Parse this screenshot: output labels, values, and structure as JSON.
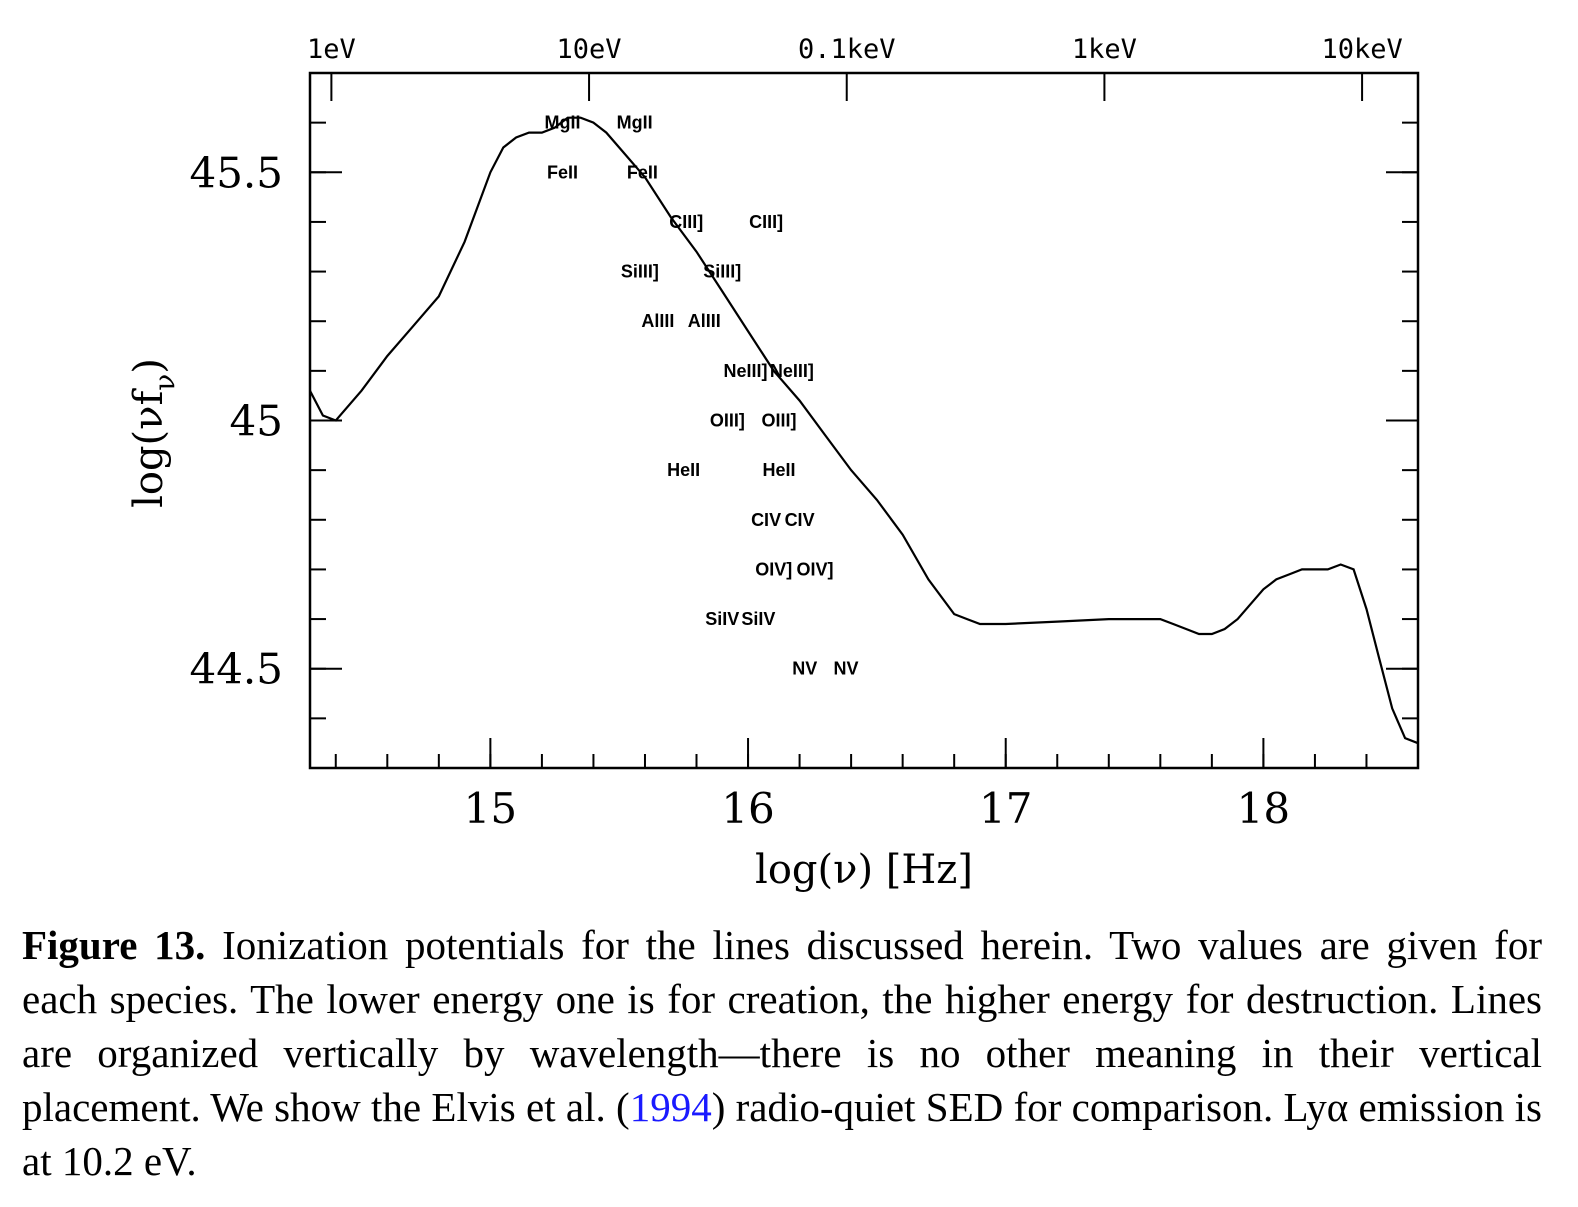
{
  "chart_data": {
    "type": "line",
    "xlabel": "log(ν) [Hz]",
    "ylabel": "log(νf_ν)",
    "xlim": [
      14.3,
      18.6
    ],
    "ylim": [
      44.3,
      45.7
    ],
    "x_ticks": [
      {
        "value": 15,
        "label": "15"
      },
      {
        "value": 16,
        "label": "16"
      },
      {
        "value": 17,
        "label": "17"
      },
      {
        "value": 18,
        "label": "18"
      }
    ],
    "y_ticks": [
      {
        "value": 44.5,
        "label": "44.5"
      },
      {
        "value": 45,
        "label": "45"
      },
      {
        "value": 45.5,
        "label": "45.5"
      }
    ],
    "top_ticks": [
      {
        "value": 14.383,
        "label": "1eV"
      },
      {
        "value": 15.383,
        "label": "10eV"
      },
      {
        "value": 16.383,
        "label": "0.1keV"
      },
      {
        "value": 17.383,
        "label": "1keV"
      },
      {
        "value": 18.383,
        "label": "10keV"
      }
    ],
    "series": [
      {
        "x": [
          14.3,
          14.35,
          14.4,
          14.5,
          14.6,
          14.7,
          14.8,
          14.9,
          15.0,
          15.05,
          15.1,
          15.15,
          15.2,
          15.25,
          15.3,
          15.35,
          15.4,
          15.45,
          15.5,
          15.6,
          15.7,
          15.8,
          15.9,
          16.0,
          16.1,
          16.2,
          16.3,
          16.4,
          16.5,
          16.6,
          16.7,
          16.8,
          16.85,
          16.9,
          17.0,
          17.2,
          17.4,
          17.6,
          17.65,
          17.7,
          17.75,
          17.8,
          17.85,
          17.9,
          17.95,
          18.0,
          18.05,
          18.1,
          18.15,
          18.2,
          18.25,
          18.3,
          18.35,
          18.4,
          18.45,
          18.5,
          18.55,
          18.6
        ],
        "y": [
          45.06,
          45.01,
          45.0,
          45.06,
          45.13,
          45.19,
          45.25,
          45.36,
          45.5,
          45.55,
          45.57,
          45.58,
          45.58,
          45.59,
          45.61,
          45.61,
          45.6,
          45.58,
          45.55,
          45.49,
          45.41,
          45.34,
          45.26,
          45.18,
          45.1,
          45.04,
          44.97,
          44.9,
          44.84,
          44.77,
          44.68,
          44.61,
          44.6,
          44.59,
          44.59,
          44.595,
          44.6,
          44.6,
          44.59,
          44.58,
          44.57,
          44.57,
          44.58,
          44.6,
          44.63,
          44.66,
          44.68,
          44.69,
          44.7,
          44.7,
          44.7,
          44.71,
          44.7,
          44.62,
          44.52,
          44.42,
          44.36,
          44.35
        ]
      }
    ],
    "annotations": [
      {
        "text": "MgII",
        "x": 15.28,
        "y": 45.6
      },
      {
        "text": "MgII",
        "x": 15.56,
        "y": 45.6
      },
      {
        "text": "FeII",
        "x": 15.28,
        "y": 45.5
      },
      {
        "text": "FeII",
        "x": 15.59,
        "y": 45.5
      },
      {
        "text": "CIII]",
        "x": 15.76,
        "y": 45.4
      },
      {
        "text": "CIII]",
        "x": 16.07,
        "y": 45.4
      },
      {
        "text": "SiIII]",
        "x": 15.58,
        "y": 45.3
      },
      {
        "text": "SiIII]",
        "x": 15.9,
        "y": 45.3
      },
      {
        "text": "AlIII",
        "x": 15.65,
        "y": 45.2
      },
      {
        "text": "AlIII",
        "x": 15.83,
        "y": 45.2
      },
      {
        "text": "NeIII]",
        "x": 15.99,
        "y": 45.1
      },
      {
        "text": "NeIII]",
        "x": 16.17,
        "y": 45.1
      },
      {
        "text": "OIII]",
        "x": 15.92,
        "y": 45.0
      },
      {
        "text": "OIII]",
        "x": 16.12,
        "y": 45.0
      },
      {
        "text": "HeII",
        "x": 15.75,
        "y": 44.9
      },
      {
        "text": "HeII",
        "x": 16.12,
        "y": 44.9
      },
      {
        "text": "CIV",
        "x": 16.07,
        "y": 44.8
      },
      {
        "text": "CIV",
        "x": 16.2,
        "y": 44.8
      },
      {
        "text": "OIV]",
        "x": 16.1,
        "y": 44.7
      },
      {
        "text": "OIV]",
        "x": 16.26,
        "y": 44.7
      },
      {
        "text": "SiIV",
        "x": 15.9,
        "y": 44.6
      },
      {
        "text": "SiIV",
        "x": 16.04,
        "y": 44.6
      },
      {
        "text": "NV",
        "x": 16.22,
        "y": 44.5
      },
      {
        "text": "NV",
        "x": 16.38,
        "y": 44.5
      }
    ]
  },
  "caption": {
    "label": "Figure 13.",
    "text_before_cite": " Ionization potentials for the lines discussed herein. Two values are given for each species. The lower energy one is for creation, the higher energy for destruction. Lines are organized vertically by wavelength—there is no other meaning in their vertical placement. We show the Elvis et al. (",
    "cite": "1994",
    "text_after_cite": ") radio-quiet SED for comparison. Lyα emission is at 10.2 eV."
  }
}
